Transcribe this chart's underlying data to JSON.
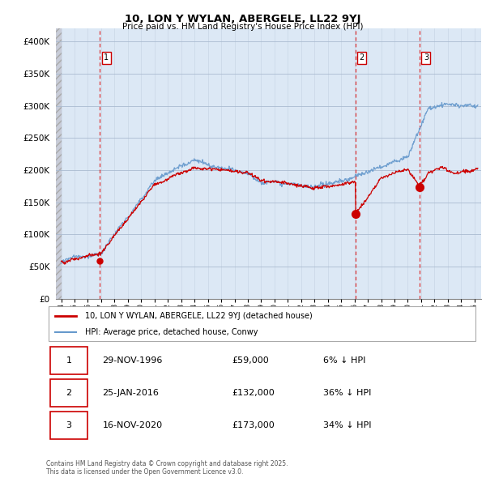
{
  "title": "10, LON Y WYLAN, ABERGELE, LL22 9YJ",
  "subtitle": "Price paid vs. HM Land Registry's House Price Index (HPI)",
  "ylim": [
    0,
    420000
  ],
  "yticks": [
    0,
    50000,
    100000,
    150000,
    200000,
    250000,
    300000,
    350000,
    400000
  ],
  "sale_dates": [
    1996.91,
    2016.07,
    2020.88
  ],
  "sale_prices": [
    59000,
    132000,
    173000
  ],
  "sale_labels": [
    "1",
    "2",
    "3"
  ],
  "vline_dates": [
    1996.91,
    2016.07,
    2020.88
  ],
  "legend_entries": [
    "10, LON Y WYLAN, ABERGELE, LL22 9YJ (detached house)",
    "HPI: Average price, detached house, Conwy"
  ],
  "table_rows": [
    [
      "1",
      "29-NOV-1996",
      "£59,000",
      "6% ↓ HPI"
    ],
    [
      "2",
      "25-JAN-2016",
      "£132,000",
      "36% ↓ HPI"
    ],
    [
      "3",
      "16-NOV-2020",
      "£173,000",
      "34% ↓ HPI"
    ]
  ],
  "footnote": "Contains HM Land Registry data © Crown copyright and database right 2025.\nThis data is licensed under the Open Government Licence v3.0.",
  "hatch_color": "#d8dce8",
  "bg_color": "#dce8f5",
  "grid_color": "#aabbd0",
  "hpi_line_color": "#6699cc",
  "price_line_color": "#cc0000",
  "xlim_left": 1993.6,
  "xlim_right": 2025.5
}
